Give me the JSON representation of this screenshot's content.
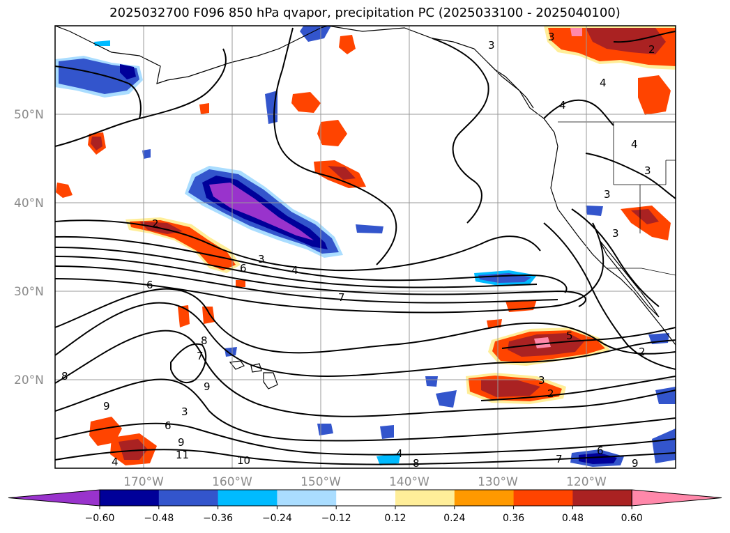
{
  "title": "2025032700 F096 850 hPa qvapor, precipitation PC (2025033100 - 2025040100)",
  "lat_labels": [
    "50°N",
    "40°N",
    "30°N",
    "20°N"
  ],
  "lon_labels": [
    "170°W",
    "160°W",
    "150°W",
    "140°W",
    "130°W",
    "120°W"
  ],
  "colorbar": {
    "ticks": [
      "−0.60",
      "−0.48",
      "−0.36",
      "−0.24",
      "−0.12",
      "0.12",
      "0.24",
      "0.36",
      "0.48",
      "0.60"
    ],
    "colors": [
      "#9933cc",
      "#000099",
      "#3355cc",
      "#00bbff",
      "#aaddff",
      "#ffffff",
      "#ffee99",
      "#ff9900",
      "#ff4400",
      "#aa2222",
      "#ff88aa"
    ]
  },
  "contour_labels": [
    "2",
    "3",
    "4",
    "6",
    "7",
    "8",
    "9",
    "10",
    "11",
    "5"
  ],
  "shading_colors": {
    "purple": "#9933cc",
    "navy": "#000099",
    "blue": "#3355cc",
    "cyan": "#00bbff",
    "lightblue": "#aaddff",
    "yellow": "#ffee99",
    "orange": "#ff9900",
    "redorange": "#ff4400",
    "darkred": "#aa2222",
    "pink": "#ff88aa"
  }
}
